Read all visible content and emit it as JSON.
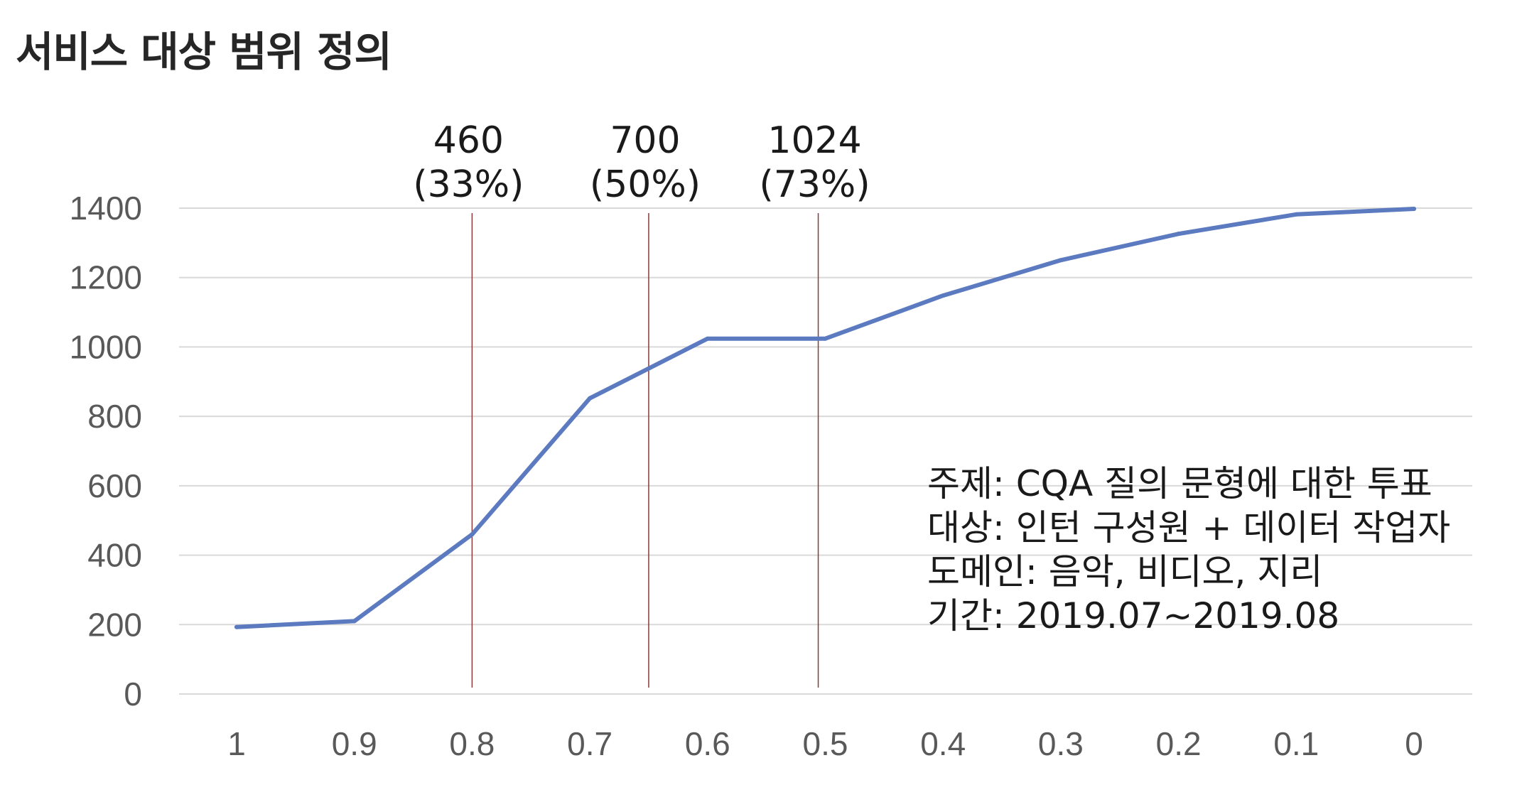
{
  "page_title": "서비스 대상 범위 정의",
  "chart_data": {
    "type": "line",
    "x": [
      "1",
      "0.9",
      "0.8",
      "0.7",
      "0.6",
      "0.5",
      "0.4",
      "0.3",
      "0.2",
      "0.1",
      "0"
    ],
    "series": [
      {
        "values": [
          193,
          210,
          460,
          852,
          1024,
          1024,
          1148,
          1250,
          1326,
          1382,
          1398
        ]
      }
    ],
    "y_ticks": [
      "0",
      "200",
      "400",
      "600",
      "800",
      "1000",
      "1200",
      "1400"
    ],
    "ylim": [
      0,
      1400
    ],
    "grid": "horizontal",
    "line_color": "#5b7ac0",
    "grid_color": "#d9d9d9",
    "marker_color": "#8b3a3a",
    "markers": [
      {
        "x": 0.8,
        "value": "460",
        "percent": "(33%)"
      },
      {
        "x": 0.65,
        "value": "700",
        "percent": "(50%)"
      },
      {
        "x": 0.506,
        "value": "1024",
        "percent": "(73%)"
      }
    ],
    "annotation": [
      "주제: CQA 질의 문형에 대한 투표",
      "대상: 인턴 구성원 + 데이터 작업자",
      "도메인: 음악, 비디오, 지리",
      "기간: 2019.07~2019.08"
    ]
  }
}
